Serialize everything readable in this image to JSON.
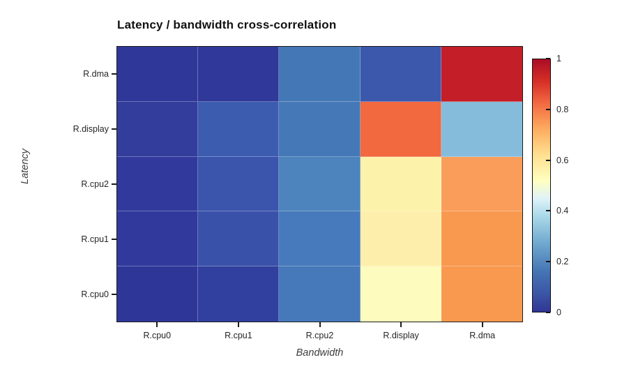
{
  "chart_data": {
    "type": "heatmap",
    "title": "Latency / bandwidth cross-correlation",
    "xlabel": "Bandwidth",
    "ylabel": "Latency",
    "x_categories": [
      "R.cpu0",
      "R.cpu1",
      "R.cpu2",
      "R.display",
      "R.dma"
    ],
    "y_categories": [
      "R.dma",
      "R.display",
      "R.cpu2",
      "R.cpu1",
      "R.cpu0"
    ],
    "values": [
      [
        0.04,
        0.05,
        0.2,
        0.11,
        0.93
      ],
      [
        0.04,
        0.12,
        0.2,
        0.8,
        0.33
      ],
      [
        0.04,
        0.11,
        0.23,
        0.53,
        0.7
      ],
      [
        0.04,
        0.09,
        0.21,
        0.53,
        0.7
      ],
      [
        0.03,
        0.05,
        0.2,
        0.49,
        0.71
      ]
    ],
    "cell_colors": [
      [
        "#2f3799",
        "#30389a",
        "#4477b6",
        "#3c58ad",
        "#c41e28"
      ],
      [
        "#333d9b",
        "#3c5cb0",
        "#4478b7",
        "#f2683f",
        "#85bcdc"
      ],
      [
        "#313a9c",
        "#3b55ad",
        "#4d84bd",
        "#fdf2a9",
        "#fa9d5a"
      ],
      [
        "#313a9c",
        "#3a51a9",
        "#477abc",
        "#fdefab",
        "#f8994f"
      ],
      [
        "#2e3798",
        "#313f9f",
        "#4679b9",
        "#fdfbbd",
        "#f8994f"
      ]
    ],
    "value_range": [
      0,
      1
    ],
    "grid": false,
    "colorbar": {
      "position": "right",
      "tick_labels": [
        "1",
        "0.8",
        "0.6",
        "0.4",
        "0.2",
        "0"
      ],
      "colormap": "RdYlBu_r",
      "gradient_stops_bottom_to_top": [
        {
          "pos": 0,
          "color": "#313695"
        },
        {
          "pos": 8,
          "color": "#3c59a6"
        },
        {
          "pos": 16,
          "color": "#4575b4"
        },
        {
          "pos": 28,
          "color": "#74add1"
        },
        {
          "pos": 38,
          "color": "#abd9e9"
        },
        {
          "pos": 45,
          "color": "#e0f3f8"
        },
        {
          "pos": 52,
          "color": "#ffffbf"
        },
        {
          "pos": 62,
          "color": "#fee090"
        },
        {
          "pos": 72,
          "color": "#fdae61"
        },
        {
          "pos": 82,
          "color": "#f46d43"
        },
        {
          "pos": 91,
          "color": "#d73027"
        },
        {
          "pos": 100,
          "color": "#ab0c25"
        }
      ]
    }
  },
  "colors": {
    "background": "#ffffff",
    "axis_frame": "#1c1c1c",
    "tick_label": "#262626",
    "axis_label": "#3d3d3d"
  }
}
